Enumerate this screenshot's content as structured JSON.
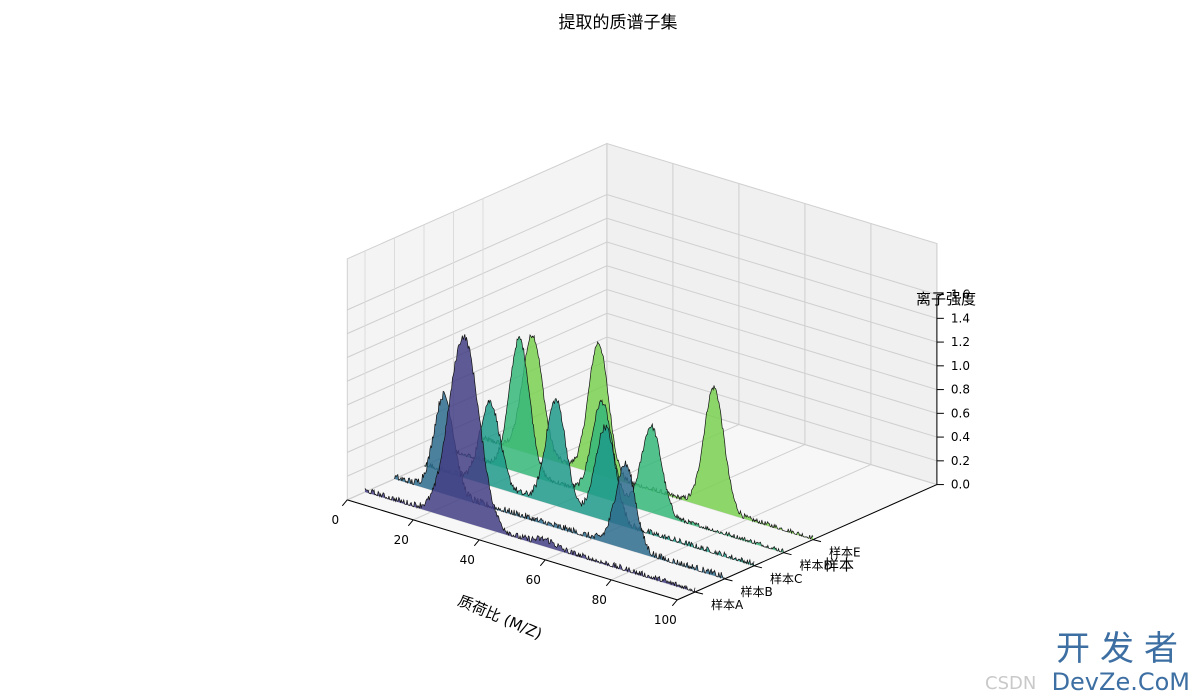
{
  "chart_data": {
    "type": "3d-waterfall",
    "title": "提取的质谱子集",
    "xlabel": "质荷比 (M/Z)",
    "ylabel": "样本",
    "zlabel": "离子强度",
    "xlim": [
      0,
      100
    ],
    "zlim": [
      0,
      1.6
    ],
    "x_ticks": [
      "0",
      "20",
      "40",
      "60",
      "80",
      "100"
    ],
    "z_ticks": [
      "0.0",
      "0.2",
      "0.4",
      "0.6",
      "0.8",
      "1.0",
      "1.2",
      "1.4",
      "1.6"
    ],
    "samples": [
      "样本A",
      "样本B",
      "样本C",
      "样本D",
      "样本E"
    ],
    "series": [
      {
        "name": "样本A",
        "color": "#433e85",
        "noise": 0.06,
        "peaks": [
          {
            "mz": 30,
            "intensity": 1.55,
            "width": 4.5
          },
          {
            "mz": 55,
            "intensity": 0.05,
            "width": 3
          }
        ]
      },
      {
        "name": "样本B",
        "color": "#2e6c8e",
        "noise": 0.07,
        "peaks": [
          {
            "mz": 15,
            "intensity": 0.82,
            "width": 3.0
          },
          {
            "mz": 70,
            "intensity": 0.7,
            "width": 3.0
          }
        ]
      },
      {
        "name": "样本C",
        "color": "#1f9a8a",
        "noise": 0.06,
        "peaks": [
          {
            "mz": 20,
            "intensity": 0.7,
            "width": 3.0
          },
          {
            "mz": 40,
            "intensity": 0.88,
            "width": 3.0
          },
          {
            "mz": 55,
            "intensity": 0.78,
            "width": 3.0
          }
        ]
      },
      {
        "name": "样本D",
        "color": "#35b779",
        "noise": 0.05,
        "peaks": [
          {
            "mz": 20,
            "intensity": 1.12,
            "width": 3.0
          },
          {
            "mz": 45,
            "intensity": 0.8,
            "width": 3.0
          },
          {
            "mz": 60,
            "intensity": 0.72,
            "width": 3.0
          }
        ]
      },
      {
        "name": "样本E",
        "color": "#7ad151",
        "noise": 0.05,
        "peaks": [
          {
            "mz": 15,
            "intensity": 1.0,
            "width": 3.0
          },
          {
            "mz": 35,
            "intensity": 1.1,
            "width": 3.0
          },
          {
            "mz": 70,
            "intensity": 1.02,
            "width": 3.0
          }
        ]
      }
    ]
  },
  "watermark": {
    "top": "开发者",
    "bottom": "DevZe.CoM",
    "site": "CSDN"
  }
}
